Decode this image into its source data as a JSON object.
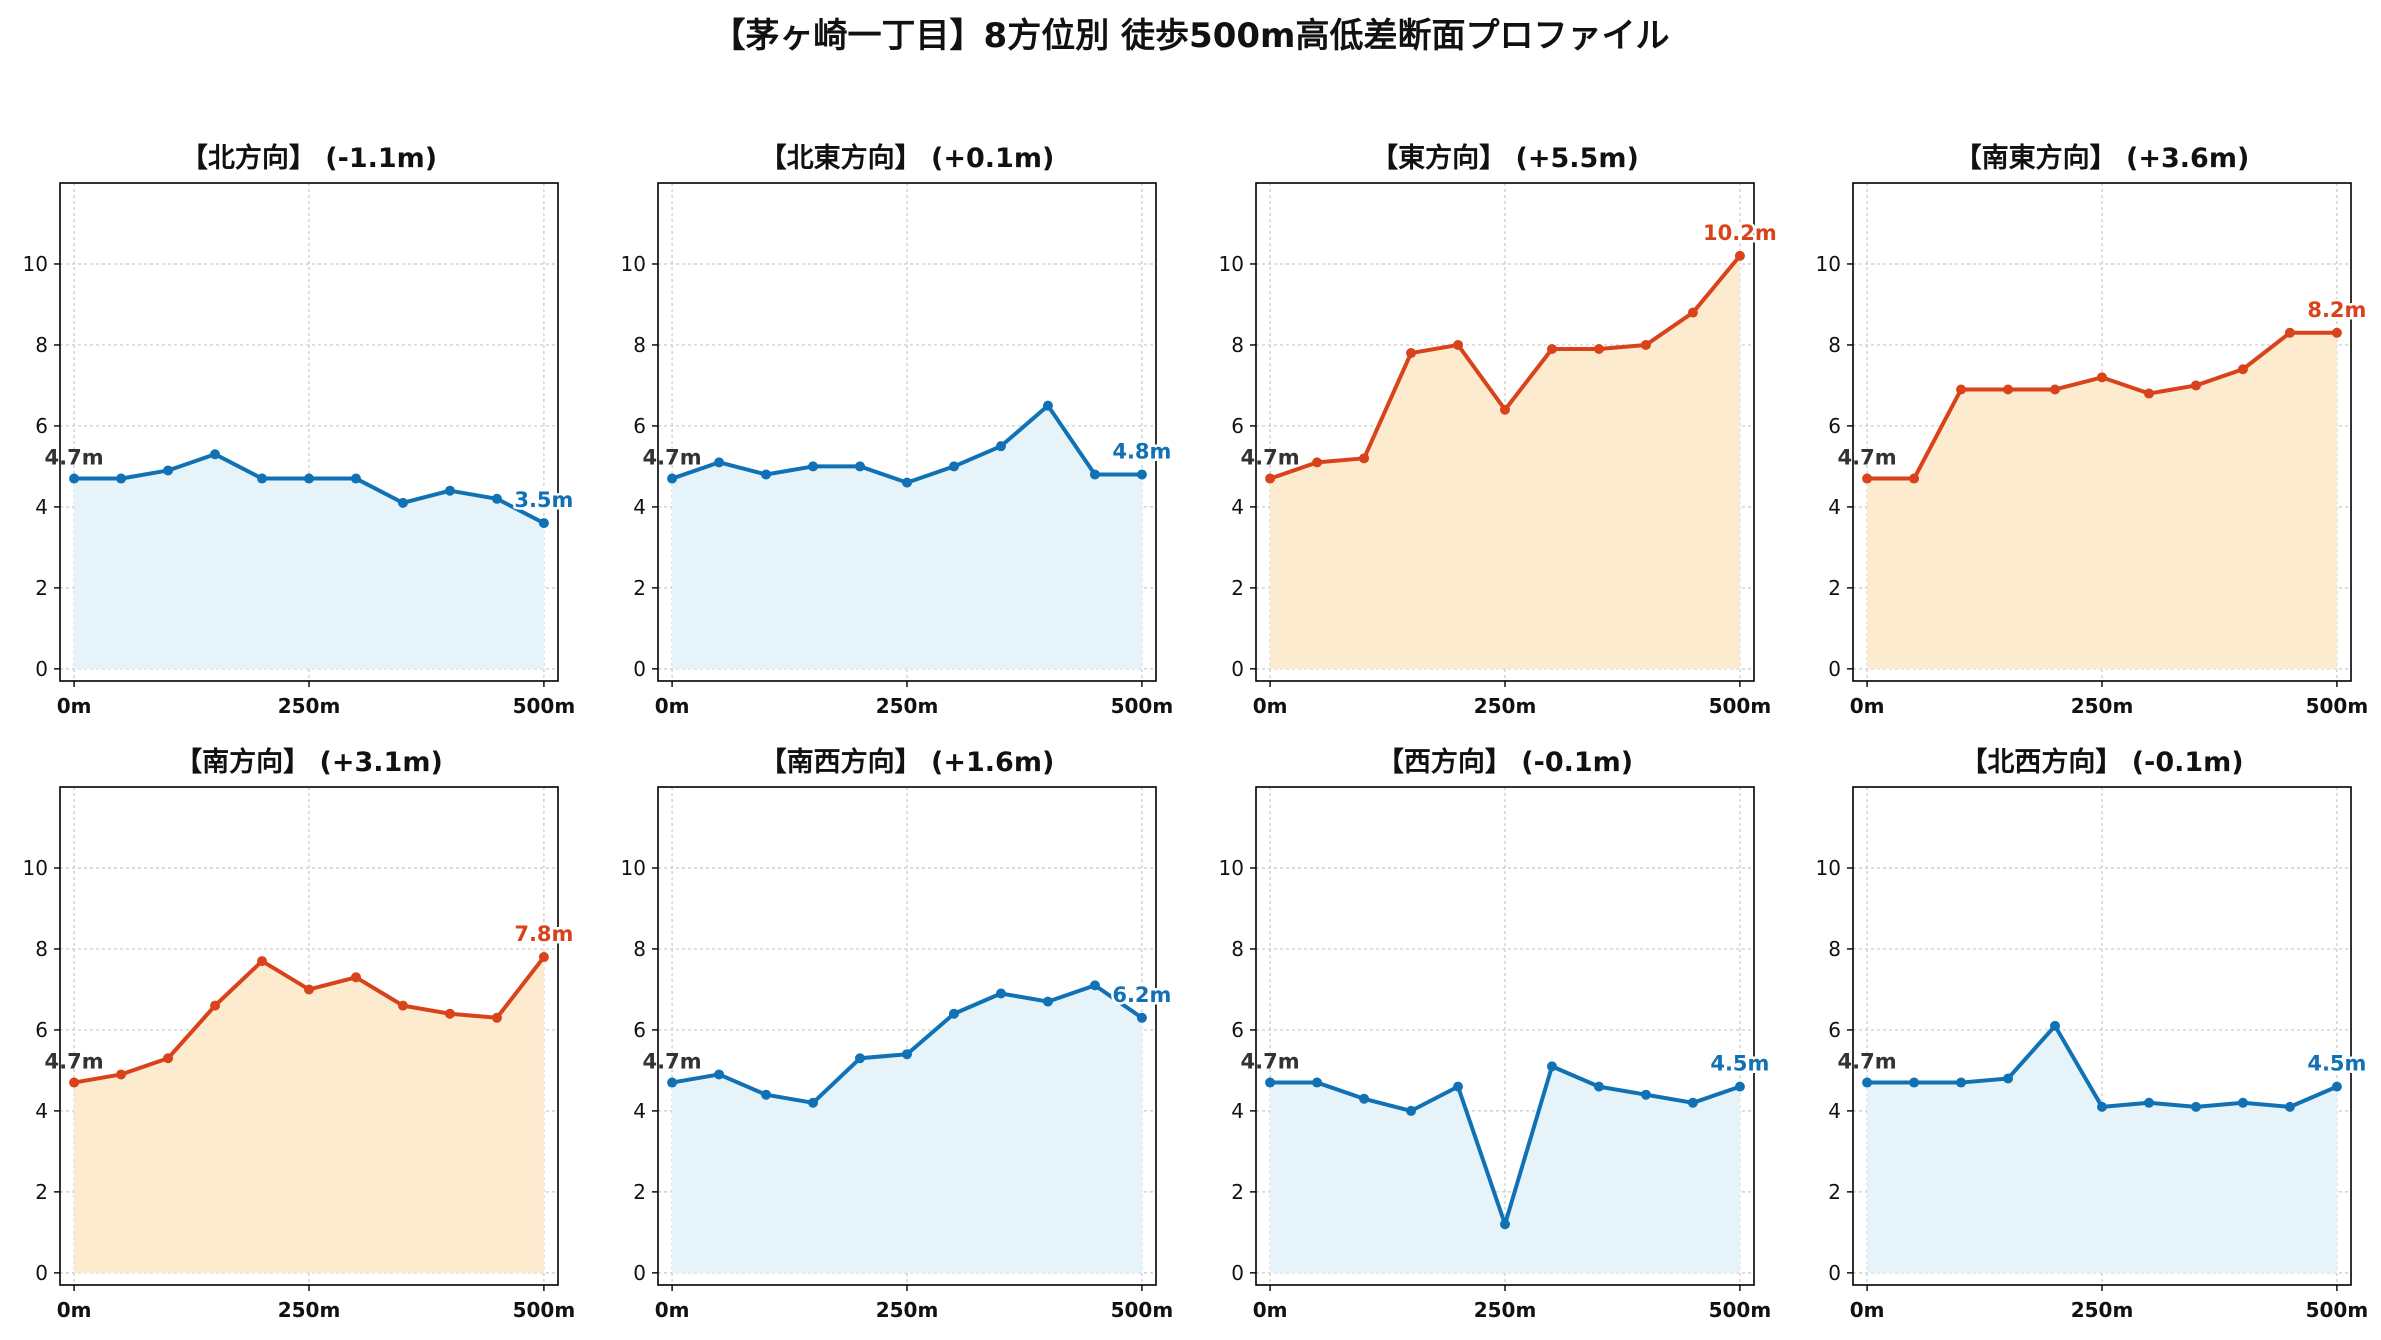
{
  "title": "【茅ヶ崎一丁目】8方位別 徒歩500m高低差断面プロファイル",
  "colors": {
    "up": "#d9431b",
    "down": "#1071b5",
    "up_fill": "#fdebd0",
    "down_fill": "#e6f4fa",
    "start_label": "#333333"
  },
  "x_ticks": [
    "0m",
    "250m",
    "500m"
  ],
  "y_ticks": [
    0,
    2,
    4,
    6,
    8,
    10
  ],
  "chart_data": [
    {
      "type": "area",
      "title": "【北方向】 (-1.1m)",
      "trend": "down",
      "x": [
        0,
        50,
        100,
        150,
        200,
        250,
        300,
        350,
        400,
        450,
        500
      ],
      "y": [
        4.7,
        4.7,
        4.9,
        5.3,
        4.7,
        4.7,
        4.7,
        4.1,
        4.4,
        4.2,
        3.6
      ],
      "start_label": "4.7m",
      "end_label": "3.5m",
      "xlim": [
        -15,
        515
      ],
      "ylim": [
        -0.3,
        12
      ],
      "grid": true
    },
    {
      "type": "area",
      "title": "【北東方向】 (+0.1m)",
      "trend": "down",
      "x": [
        0,
        50,
        100,
        150,
        200,
        250,
        300,
        350,
        400,
        450,
        500
      ],
      "y": [
        4.7,
        5.1,
        4.8,
        5.0,
        5.0,
        4.6,
        5.0,
        5.5,
        6.5,
        4.8,
        4.8
      ],
      "start_label": "4.7m",
      "end_label": "4.8m",
      "xlim": [
        -15,
        515
      ],
      "ylim": [
        -0.3,
        12
      ],
      "grid": true
    },
    {
      "type": "area",
      "title": "【東方向】 (+5.5m)",
      "trend": "up",
      "x": [
        0,
        50,
        100,
        150,
        200,
        250,
        300,
        350,
        400,
        450,
        500
      ],
      "y": [
        4.7,
        5.1,
        5.2,
        7.8,
        8.0,
        6.4,
        7.9,
        7.9,
        8.0,
        8.8,
        10.2
      ],
      "start_label": "4.7m",
      "end_label": "10.2m",
      "xlim": [
        -15,
        515
      ],
      "ylim": [
        -0.3,
        12
      ],
      "grid": true
    },
    {
      "type": "area",
      "title": "【南東方向】 (+3.6m)",
      "trend": "up",
      "x": [
        0,
        50,
        100,
        150,
        200,
        250,
        300,
        350,
        400,
        450,
        500
      ],
      "y": [
        4.7,
        4.7,
        6.9,
        6.9,
        6.9,
        7.2,
        6.8,
        7.0,
        7.4,
        8.3,
        8.3
      ],
      "start_label": "4.7m",
      "end_label": "8.2m",
      "xlim": [
        -15,
        515
      ],
      "ylim": [
        -0.3,
        12
      ],
      "grid": true
    },
    {
      "type": "area",
      "title": "【南方向】 (+3.1m)",
      "trend": "up",
      "x": [
        0,
        50,
        100,
        150,
        200,
        250,
        300,
        350,
        400,
        450,
        500
      ],
      "y": [
        4.7,
        4.9,
        5.3,
        6.6,
        7.7,
        7.0,
        7.3,
        6.6,
        6.4,
        6.3,
        7.8
      ],
      "start_label": "4.7m",
      "end_label": "7.8m",
      "xlim": [
        -15,
        515
      ],
      "ylim": [
        -0.3,
        12
      ],
      "grid": true
    },
    {
      "type": "area",
      "title": "【南西方向】 (+1.6m)",
      "trend": "down",
      "x": [
        0,
        50,
        100,
        150,
        200,
        250,
        300,
        350,
        400,
        450,
        500
      ],
      "y": [
        4.7,
        4.9,
        4.4,
        4.2,
        5.3,
        5.4,
        6.4,
        6.9,
        6.7,
        7.1,
        6.3
      ],
      "start_label": "4.7m",
      "end_label": "6.2m",
      "xlim": [
        -15,
        515
      ],
      "ylim": [
        -0.3,
        12
      ],
      "grid": true
    },
    {
      "type": "area",
      "title": "【西方向】 (-0.1m)",
      "trend": "down",
      "x": [
        0,
        50,
        100,
        150,
        200,
        250,
        300,
        350,
        400,
        450,
        500
      ],
      "y": [
        4.7,
        4.7,
        4.3,
        4.0,
        4.6,
        1.2,
        5.1,
        4.6,
        4.4,
        4.2,
        4.6
      ],
      "start_label": "4.7m",
      "end_label": "4.5m",
      "xlim": [
        -15,
        515
      ],
      "ylim": [
        -0.3,
        12
      ],
      "grid": true
    },
    {
      "type": "area",
      "title": "【北西方向】 (-0.1m)",
      "trend": "down",
      "x": [
        0,
        50,
        100,
        150,
        200,
        250,
        300,
        350,
        400,
        450,
        500
      ],
      "y": [
        4.7,
        4.7,
        4.7,
        4.8,
        6.1,
        4.1,
        4.2,
        4.1,
        4.2,
        4.1,
        4.6
      ],
      "start_label": "4.7m",
      "end_label": "4.5m",
      "xlim": [
        -15,
        515
      ],
      "ylim": [
        -0.3,
        12
      ],
      "grid": true
    }
  ]
}
